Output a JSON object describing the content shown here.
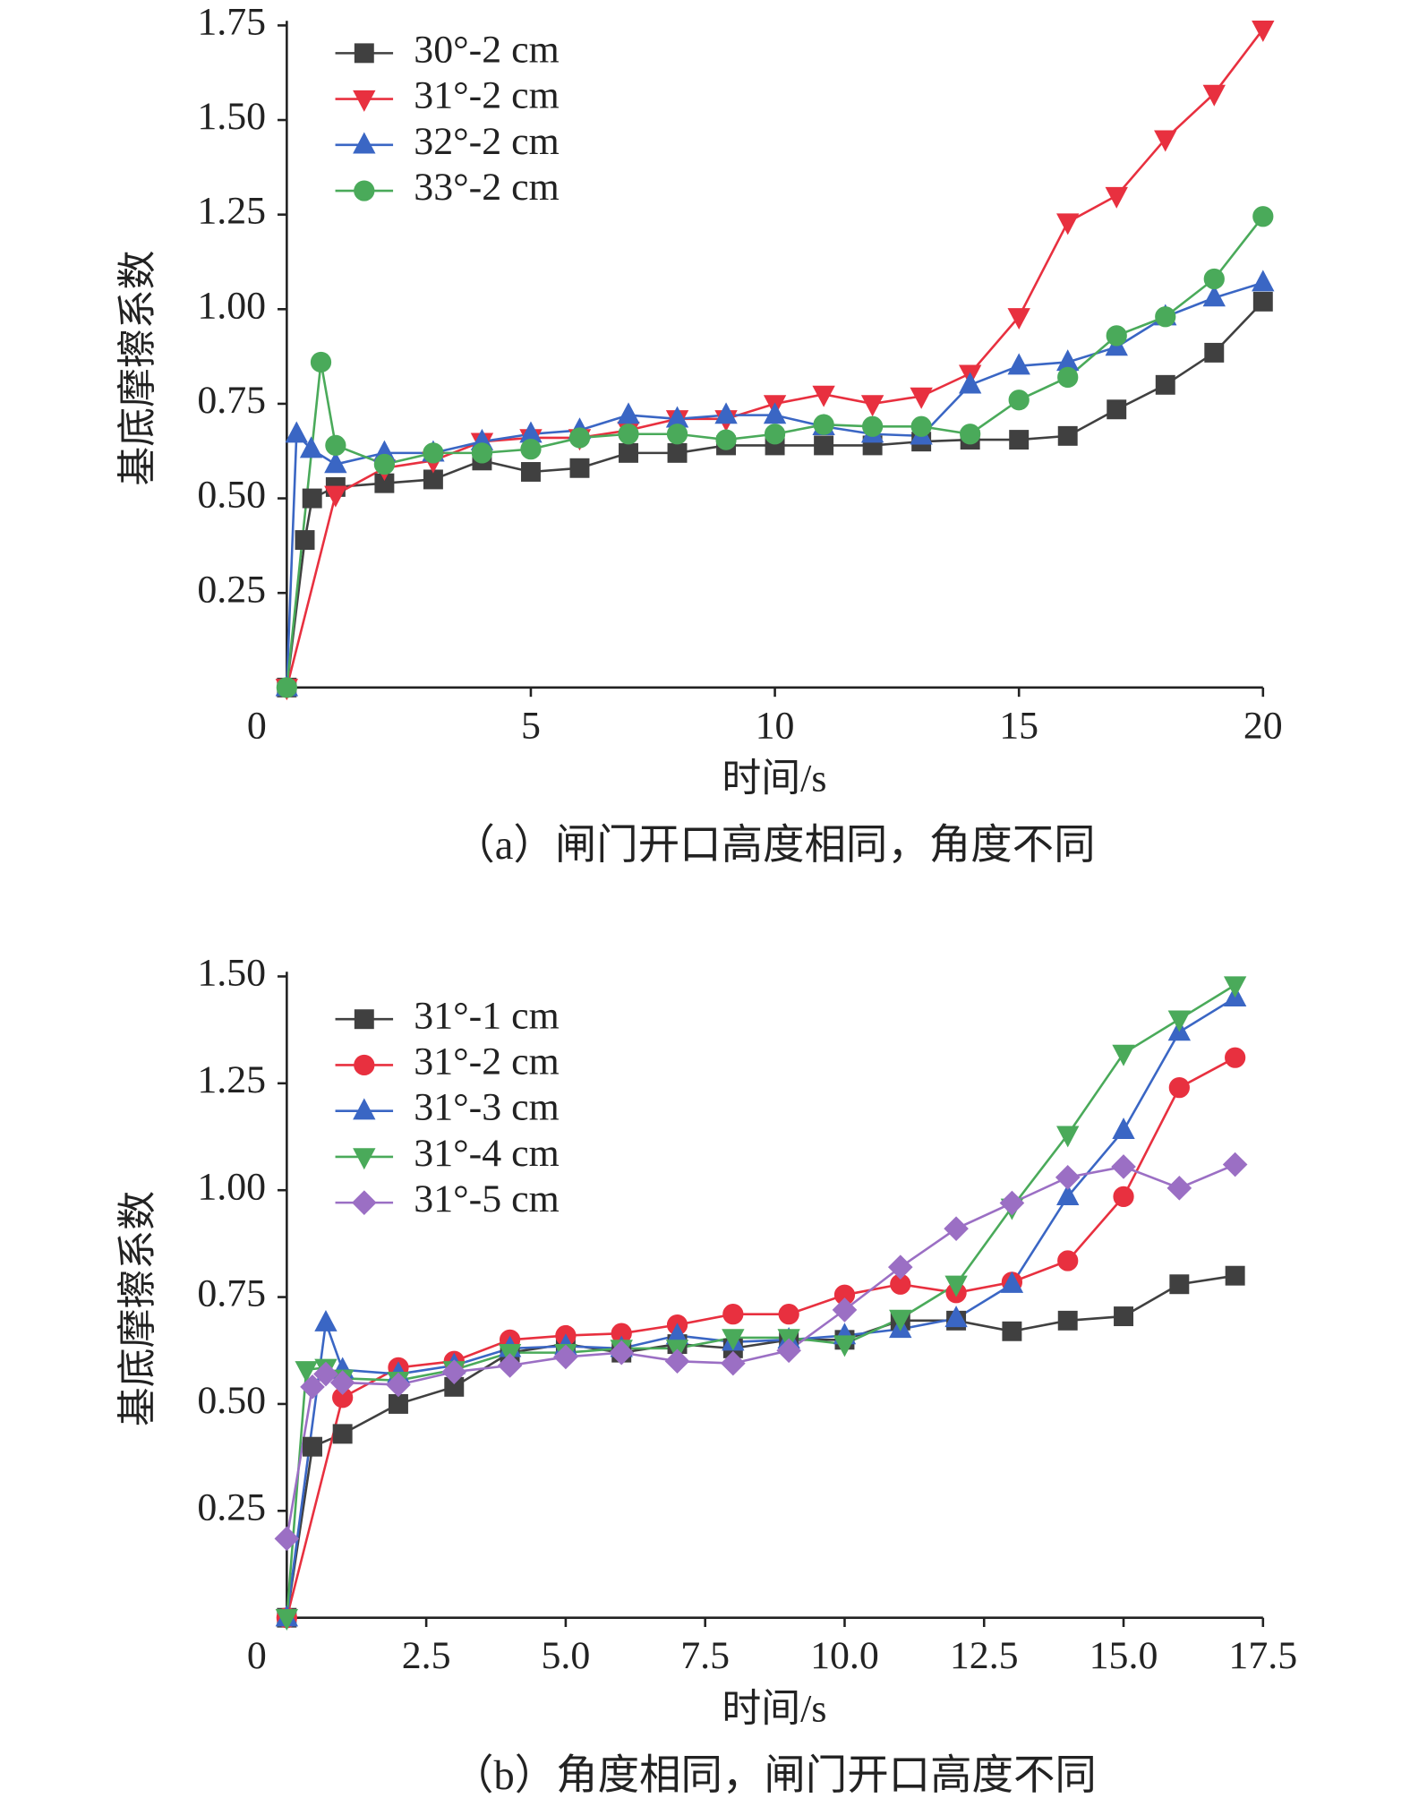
{
  "chart_data": [
    {
      "type": "line",
      "xlabel": "时间/s",
      "ylabel": "基底摩擦系数",
      "caption": "（a）闸门开口高度相同，角度不同",
      "xlim": [
        0,
        20
      ],
      "ylim": [
        0,
        1.75
      ],
      "xticks": [
        0,
        5,
        10,
        15,
        20
      ],
      "yticks": [
        0.25,
        {
          "value": 0.5,
          "label": "0.50"
        },
        0.75,
        {
          "value": 1.0,
          "label": "1.00"
        },
        1.25,
        {
          "value": 1.5,
          "label": "1.50"
        },
        1.75
      ],
      "legend": "upper left",
      "series": [
        {
          "name": "30°-2 cm",
          "color": "#404040",
          "marker": "square",
          "x": [
            0,
            0.37,
            0.52,
            1,
            2,
            3,
            4,
            5,
            6,
            7,
            8,
            9,
            10,
            11,
            12,
            13,
            14,
            15,
            16,
            17,
            18,
            19,
            20
          ],
          "values": [
            0,
            0.39,
            0.5,
            0.53,
            0.54,
            0.55,
            0.6,
            0.57,
            0.58,
            0.62,
            0.62,
            0.64,
            0.64,
            0.64,
            0.64,
            0.65,
            0.655,
            0.655,
            0.665,
            0.735,
            0.8,
            0.885,
            1.02
          ]
        },
        {
          "name": "31°-2 cm",
          "color": "#e8303f",
          "marker": "triangle-down",
          "x": [
            0,
            1,
            2,
            3,
            4,
            5,
            6,
            7,
            8,
            9,
            10,
            11,
            12,
            13,
            14,
            15,
            16,
            17,
            18,
            19,
            20
          ],
          "values": [
            0,
            0.51,
            0.58,
            0.6,
            0.65,
            0.66,
            0.66,
            0.68,
            0.71,
            0.71,
            0.75,
            0.775,
            0.75,
            0.77,
            0.83,
            0.98,
            1.23,
            1.3,
            1.45,
            1.57,
            1.74
          ]
        },
        {
          "name": "32°-2 cm",
          "color": "#3a66c4",
          "marker": "triangle-up",
          "x": [
            0,
            0.2,
            0.5,
            1,
            2,
            3,
            4,
            5,
            6,
            7,
            8,
            9,
            10,
            11,
            12,
            13,
            14,
            15,
            16,
            17,
            18,
            19,
            20
          ],
          "values": [
            0,
            0.67,
            0.63,
            0.59,
            0.62,
            0.62,
            0.65,
            0.67,
            0.68,
            0.72,
            0.71,
            0.72,
            0.72,
            0.69,
            0.67,
            0.665,
            0.8,
            0.85,
            0.86,
            0.9,
            0.98,
            1.03,
            1.07
          ]
        },
        {
          "name": "33°-2 cm",
          "color": "#4aaa5a",
          "marker": "circle",
          "x": [
            0,
            0.7,
            1,
            2,
            3,
            4,
            5,
            6,
            7,
            8,
            9,
            10,
            11,
            12,
            13,
            14,
            15,
            16,
            17,
            18,
            19,
            20
          ],
          "values": [
            0,
            0.86,
            0.64,
            0.59,
            0.62,
            0.62,
            0.63,
            0.66,
            0.67,
            0.67,
            0.655,
            0.67,
            0.695,
            0.69,
            0.69,
            0.67,
            0.76,
            0.82,
            0.93,
            0.98,
            1.08,
            1.245
          ]
        }
      ]
    },
    {
      "type": "line",
      "xlabel": "时间/s",
      "ylabel": "基底摩擦系数",
      "caption": "（b）角度相同，闸门开口高度不同",
      "xlim": [
        0,
        17.5
      ],
      "ylim": [
        0,
        1.5
      ],
      "xticks": [
        0,
        2.5,
        {
          "value": 5,
          "label": "5.0"
        },
        7.5,
        {
          "value": 10,
          "label": "10.0"
        },
        12.5,
        {
          "value": 15,
          "label": "15.0"
        },
        17.5
      ],
      "yticks": [
        0.25,
        {
          "value": 0.5,
          "label": "0.50"
        },
        0.75,
        {
          "value": 1.0,
          "label": "1.00"
        },
        1.25,
        {
          "value": 1.5,
          "label": "1.50"
        }
      ],
      "legend": "upper left",
      "series": [
        {
          "name": "31°-1 cm",
          "color": "#404040",
          "marker": "square",
          "x": [
            0,
            0.46,
            1,
            2,
            3,
            4,
            5,
            6,
            7,
            8,
            9,
            10,
            11,
            12,
            13,
            14,
            15,
            16,
            17
          ],
          "values": [
            0,
            0.4,
            0.43,
            0.5,
            0.54,
            0.62,
            0.64,
            0.62,
            0.64,
            0.63,
            0.65,
            0.65,
            0.695,
            0.695,
            0.67,
            0.695,
            0.705,
            0.78,
            0.8
          ]
        },
        {
          "name": "31°-2 cm",
          "color": "#e8303f",
          "marker": "circle",
          "x": [
            0,
            1,
            2,
            3,
            4,
            5,
            6,
            7,
            8,
            9,
            10,
            11,
            12,
            13,
            14,
            15,
            16,
            17
          ],
          "values": [
            0,
            0.515,
            0.585,
            0.6,
            0.65,
            0.66,
            0.665,
            0.685,
            0.71,
            0.71,
            0.755,
            0.78,
            0.76,
            0.785,
            0.835,
            0.985,
            1.24,
            1.31
          ]
        },
        {
          "name": "31°-3 cm",
          "color": "#3a66c4",
          "marker": "triangle-up",
          "x": [
            0,
            0.7,
            1,
            2,
            3,
            4,
            5,
            6,
            7,
            8,
            9,
            10,
            11,
            12,
            13,
            14,
            15,
            16,
            17
          ],
          "values": [
            0,
            0.69,
            0.58,
            0.57,
            0.59,
            0.63,
            0.635,
            0.63,
            0.66,
            0.645,
            0.65,
            0.66,
            0.675,
            0.7,
            0.78,
            0.985,
            1.14,
            1.37,
            1.45
          ]
        },
        {
          "name": "31°-4 cm",
          "color": "#4aaa5a",
          "marker": "triangle-down",
          "x": [
            0,
            0.35,
            0.7,
            1,
            2,
            3,
            4,
            5,
            6,
            7,
            8,
            9,
            10,
            11,
            12,
            13,
            14,
            15,
            16,
            17
          ],
          "values": [
            0,
            0.58,
            0.585,
            0.56,
            0.555,
            0.58,
            0.62,
            0.62,
            0.63,
            0.63,
            0.655,
            0.655,
            0.64,
            0.7,
            0.78,
            0.96,
            1.13,
            1.32,
            1.4,
            1.48
          ]
        },
        {
          "name": "31°-5 cm",
          "color": "#9b6fc4",
          "marker": "diamond",
          "x": [
            0,
            0.46,
            0.7,
            1,
            2,
            3,
            4,
            5,
            6,
            7,
            8,
            9,
            10,
            11,
            12,
            13,
            14,
            15,
            16,
            17
          ],
          "values": [
            0.185,
            0.54,
            0.57,
            0.55,
            0.545,
            0.575,
            0.59,
            0.61,
            0.62,
            0.6,
            0.595,
            0.625,
            0.72,
            0.82,
            0.91,
            0.97,
            1.03,
            1.055,
            1.005,
            1.06
          ]
        }
      ]
    }
  ]
}
